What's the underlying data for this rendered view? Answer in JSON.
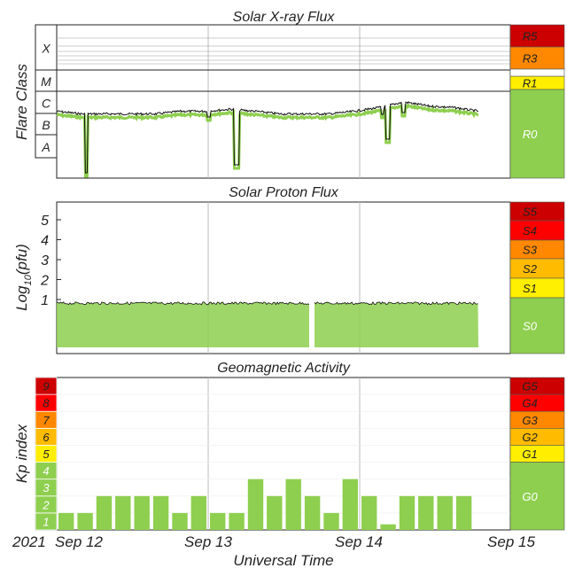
{
  "chart_data": [
    {
      "type": "line",
      "title": "Solar X-ray Flux",
      "ylabel": "Flare Class",
      "y_scale": "log",
      "class_labels": [
        "A",
        "B",
        "C",
        "M",
        "X"
      ],
      "x_range": [
        "2021-09-12T00:00",
        "2021-09-14T18:00"
      ],
      "scale_levels": [
        {
          "name": "R5",
          "color": "#cc0000"
        },
        {
          "name": "R3",
          "color": "#ff8800"
        },
        {
          "name": "R1",
          "color": "#ffee00"
        },
        {
          "name": "R0",
          "color": "#8ecf4f"
        }
      ],
      "series": [
        {
          "x": [
            "09-12 00:00",
            "09-12 04:00",
            "09-12 08:00",
            "09-12 12:00",
            "09-12 16:00",
            "09-12 20:00",
            "09-13 00:00",
            "09-13 04:00",
            "09-13 08:00",
            "09-13 12:00",
            "09-13 16:00",
            "09-13 20:00",
            "09-14 00:00",
            "09-14 04:00",
            "09-14 08:00",
            "09-14 12:00",
            "09-14 16:00",
            "09-14 18:00"
          ],
          "values": [
            "B4",
            "B3",
            "B3",
            "B3",
            "B3",
            "B4",
            "B4",
            "B5",
            "B4",
            "B3",
            "B3",
            "B3",
            "B4",
            "B6",
            "C1",
            "B7",
            "B6",
            "B4"
          ]
        }
      ]
    },
    {
      "type": "line",
      "title": "Solar Proton Flux",
      "ylabel": "Log10(pfu)",
      "ylabel_main": "Log",
      "ylabel_sub": "10",
      "ylabel_tail": "(pfu)",
      "yticks": [
        1,
        2,
        3,
        4,
        5
      ],
      "ylim": [
        -1.2,
        6
      ],
      "x_range": [
        "2021-09-12T00:00",
        "2021-09-14T18:00"
      ],
      "scale_levels": [
        {
          "name": "S5",
          "color": "#cc0000"
        },
        {
          "name": "S4",
          "color": "#ff0000"
        },
        {
          "name": "S3",
          "color": "#ff8800"
        },
        {
          "name": "S2",
          "color": "#ffbb00"
        },
        {
          "name": "S1",
          "color": "#ffee00"
        },
        {
          "name": "S0",
          "color": "#8ecf4f"
        }
      ],
      "series": [
        {
          "x": [
            "09-12 00:00",
            "09-12 12:00",
            "09-13 00:00",
            "09-13 12:00",
            "09-13 18:00",
            "09-14 00:00",
            "09-14 12:00",
            "09-14 18:00"
          ],
          "values": [
            0.1,
            0.1,
            0.1,
            0.1,
            0.1,
            0.1,
            0.1,
            0.1
          ],
          "gap": [
            "09-13 17:00",
            "09-13 18:00"
          ]
        }
      ]
    },
    {
      "type": "bar",
      "title": "Geomagnetic Activity",
      "ylabel": "Kp index",
      "yticks": [
        1,
        2,
        3,
        4,
        5,
        6,
        7,
        8,
        9
      ],
      "ylim": [
        0,
        9
      ],
      "bar_interval_hours": 3,
      "kp_colors": {
        "1": "#8ecf4f",
        "2": "#8ecf4f",
        "3": "#8ecf4f",
        "4": "#8ecf4f",
        "5": "#ffee00",
        "6": "#ffbb00",
        "7": "#ff8800",
        "8": "#ff0000",
        "9": "#cc0000"
      },
      "scale_levels": [
        {
          "name": "G5",
          "color": "#cc0000"
        },
        {
          "name": "G4",
          "color": "#ff0000"
        },
        {
          "name": "G3",
          "color": "#ff8800"
        },
        {
          "name": "G2",
          "color": "#ffbb00"
        },
        {
          "name": "G1",
          "color": "#ffee00"
        },
        {
          "name": "G0",
          "color": "#8ecf4f"
        }
      ],
      "values": [
        1,
        1,
        2,
        2,
        2,
        2,
        1,
        2,
        1,
        1,
        3,
        2,
        3,
        2,
        1,
        3,
        2,
        0.33,
        2,
        2,
        2,
        2
      ]
    }
  ],
  "x_axis": {
    "label": "Universal Time",
    "year": "2021",
    "ticks": [
      "Sep 12",
      "Sep 13",
      "Sep 14",
      "Sep 15"
    ]
  }
}
